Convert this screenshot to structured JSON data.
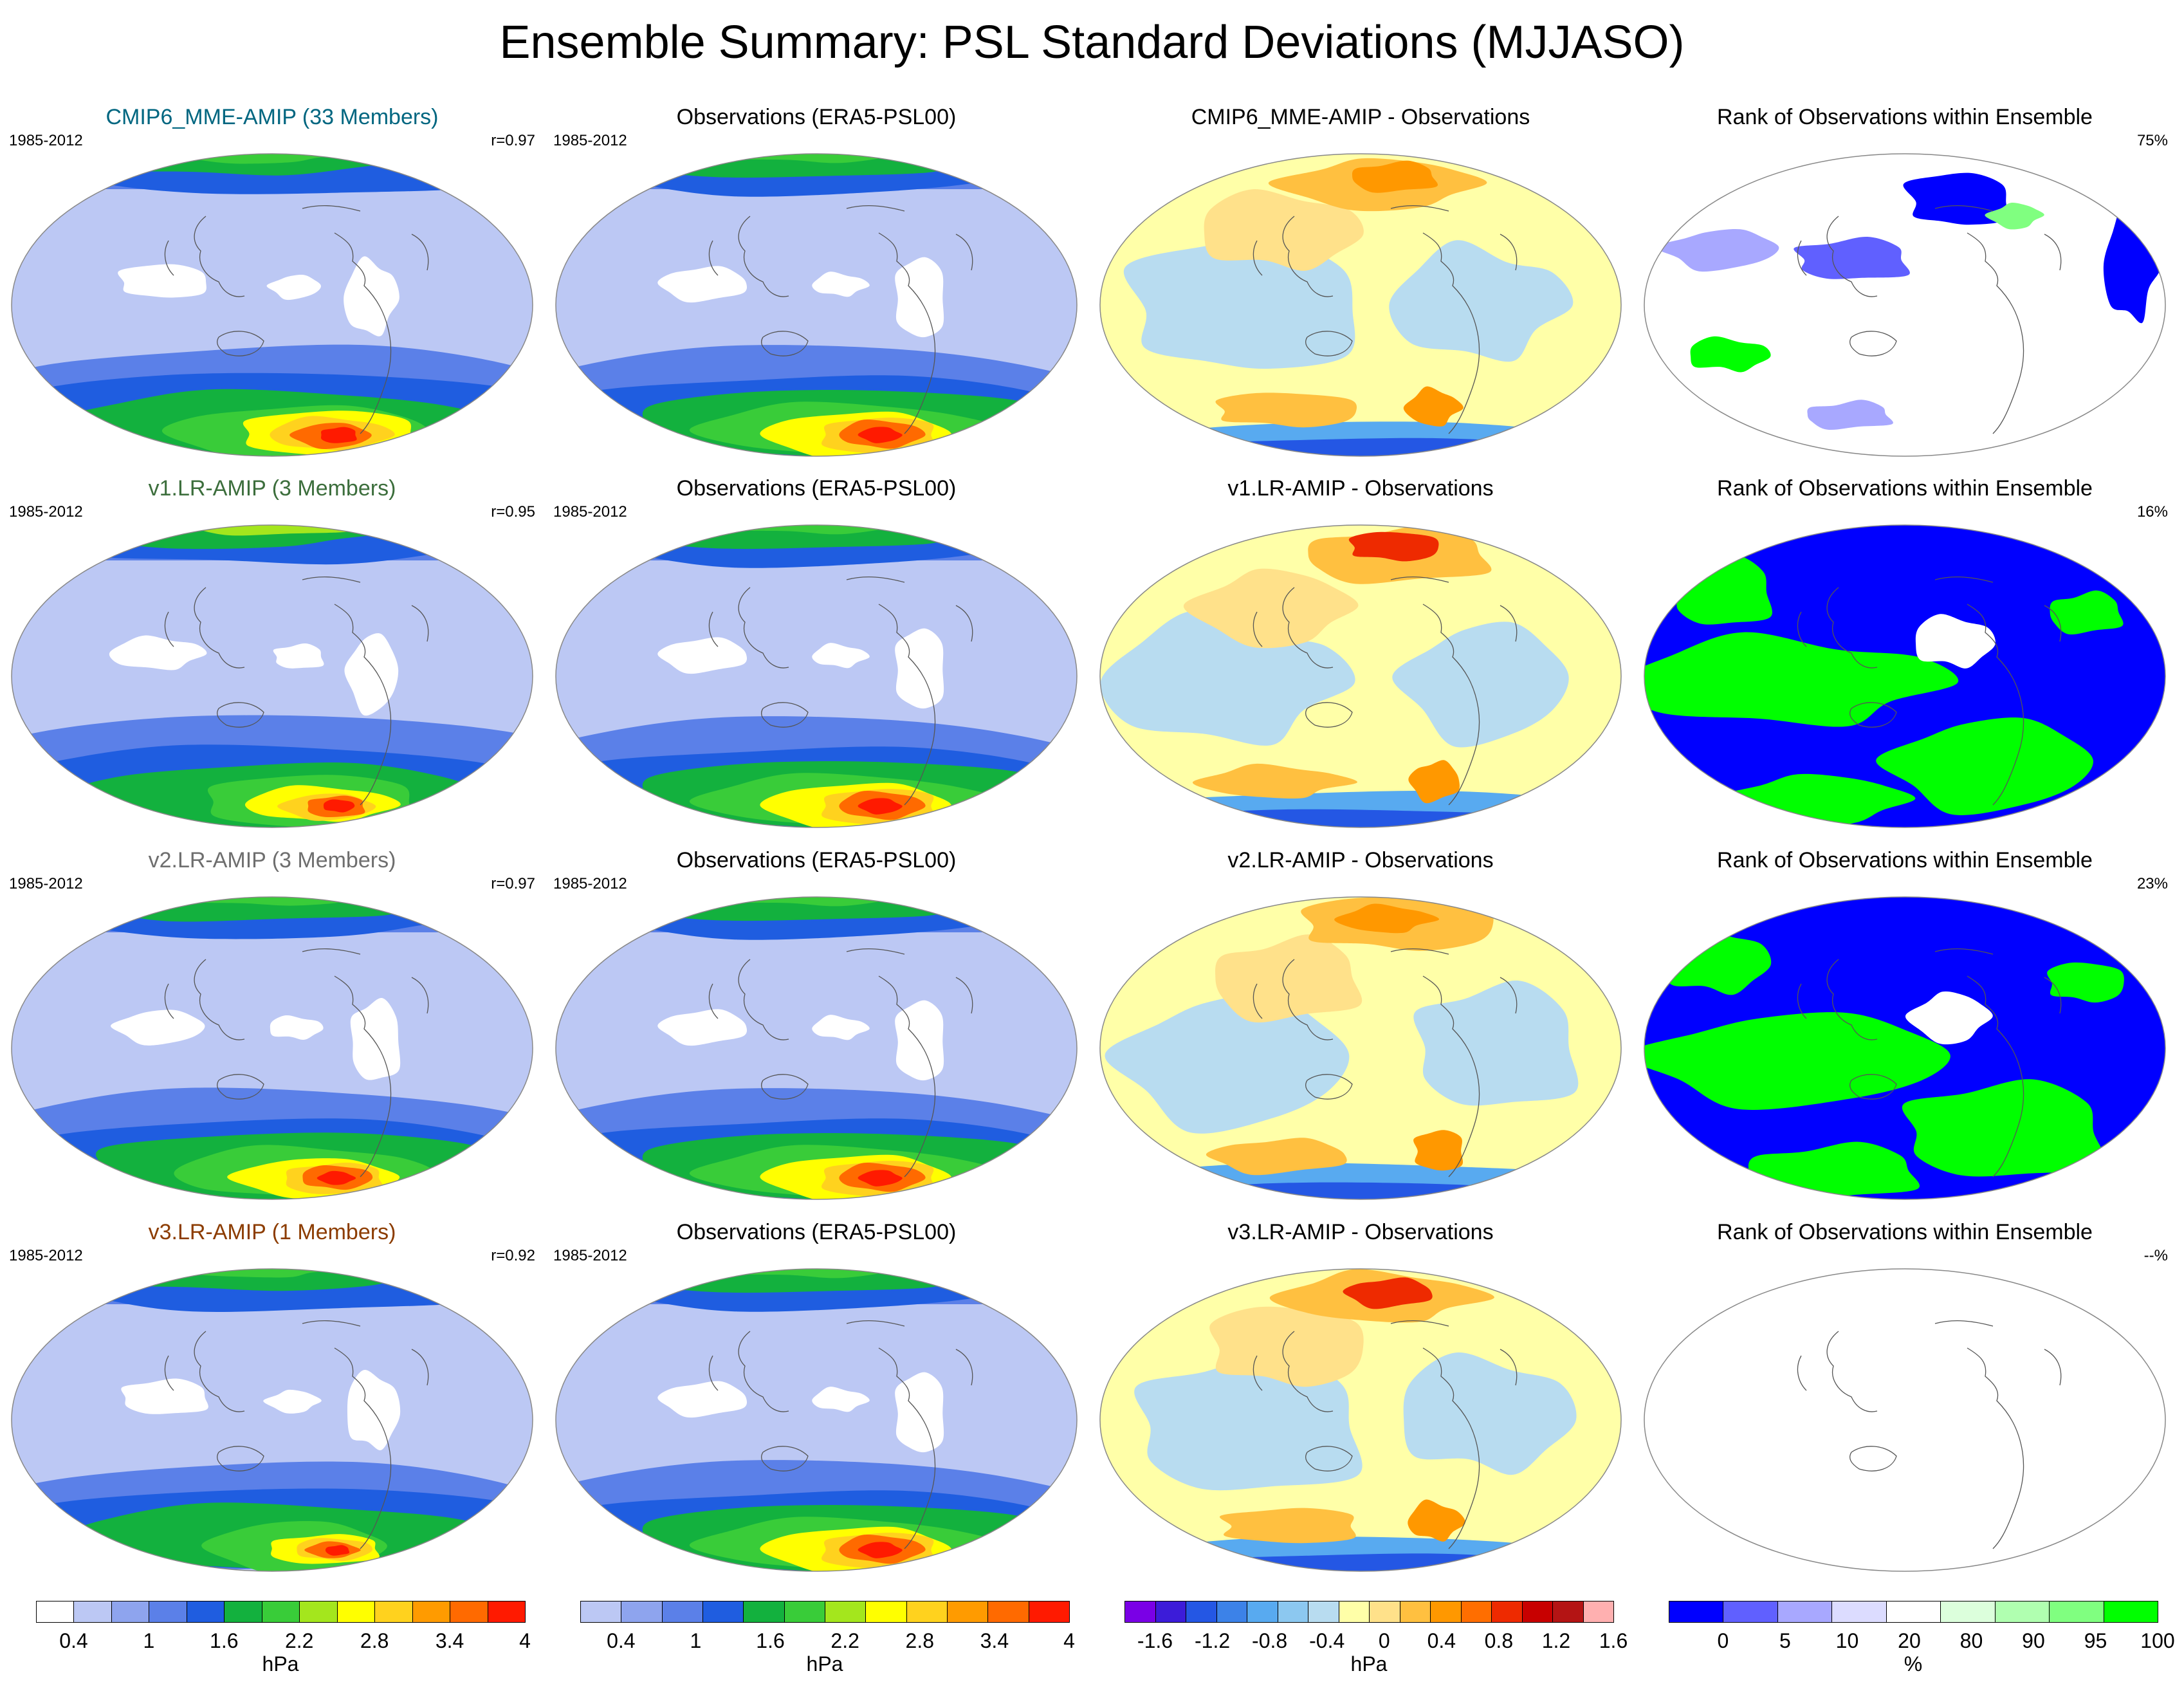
{
  "title": "Ensemble Summary: PSL Standard Deviations (MJJASO)",
  "colors": {
    "sd_scale": [
      "#ffffff",
      "#bcc8f4",
      "#8ea4ee",
      "#5b80e8",
      "#1f5de0",
      "#13b13e",
      "#39cc39",
      "#a4e61d",
      "#ffff00",
      "#ffd21e",
      "#ff9b00",
      "#ff6a00",
      "#ff1a00"
    ],
    "diff_scale": [
      "#7a00e6",
      "#3c1cd9",
      "#2457e4",
      "#3c82e8",
      "#58aaf0",
      "#8cc8f0",
      "#b8dcf0",
      "#ffffa8",
      "#ffe18a",
      "#ffc040",
      "#ff9800",
      "#ff6e00",
      "#ee2a00",
      "#c80000",
      "#b41414",
      "#ffb0b0"
    ],
    "rank_scale": [
      "#0000ff",
      "#6060ff",
      "#a8a8ff",
      "#dcdcff",
      "#ffffff",
      "#dcffdc",
      "#b0ffb0",
      "#80ff80",
      "#00ff00"
    ]
  },
  "rows": [
    {
      "model": {
        "title": "CMIP6_MME-AMIP (33 Members)",
        "title_color": "#006680",
        "period": "1985-2012",
        "stat": "r=0.97"
      },
      "obs": {
        "title": "Observations (ERA5-PSL00)",
        "period": "1985-2012"
      },
      "diff": {
        "title": "CMIP6_MME-AMIP - Observations"
      },
      "rank": {
        "title": "Rank of Observations within Ensemble",
        "stat": "75%"
      }
    },
    {
      "model": {
        "title": "v1.LR-AMIP (3 Members)",
        "title_color": "#3c6e3c",
        "period": "1985-2012",
        "stat": "r=0.95"
      },
      "obs": {
        "title": "Observations (ERA5-PSL00)",
        "period": "1985-2012"
      },
      "diff": {
        "title": "v1.LR-AMIP - Observations"
      },
      "rank": {
        "title": "Rank of Observations within Ensemble",
        "stat": "16%"
      }
    },
    {
      "model": {
        "title": "v2.LR-AMIP (3 Members)",
        "title_color": "#6e6e6e",
        "period": "1985-2012",
        "stat": "r=0.97"
      },
      "obs": {
        "title": "Observations (ERA5-PSL00)",
        "period": "1985-2012"
      },
      "diff": {
        "title": "v2.LR-AMIP - Observations"
      },
      "rank": {
        "title": "Rank of Observations within Ensemble",
        "stat": "23%"
      }
    },
    {
      "model": {
        "title": "v3.LR-AMIP (1 Members)",
        "title_color": "#8c3c00",
        "period": "1985-2012",
        "stat": "r=0.92"
      },
      "obs": {
        "title": "Observations (ERA5-PSL00)",
        "period": "1985-2012"
      },
      "diff": {
        "title": "v3.LR-AMIP - Observations"
      },
      "rank": {
        "title": "Rank of Observations within Ensemble",
        "stat": "--%"
      }
    }
  ],
  "colorbars": [
    {
      "labels": [
        "0.4",
        "1",
        "1.6",
        "2.2",
        "2.8",
        "3.4",
        "4"
      ],
      "units": "hPa"
    },
    {
      "labels": [
        "0.4",
        "1",
        "1.6",
        "2.2",
        "2.8",
        "3.4",
        "4"
      ],
      "units": "hPa"
    },
    {
      "labels": [
        "-1.6",
        "-1.2",
        "-0.8",
        "-0.4",
        "0",
        "0.4",
        "0.8",
        "1.2",
        "1.6"
      ],
      "units": "hPa"
    },
    {
      "labels": [
        "0",
        "5",
        "10",
        "20",
        "80",
        "90",
        "95",
        "100"
      ],
      "units": "%"
    }
  ]
}
